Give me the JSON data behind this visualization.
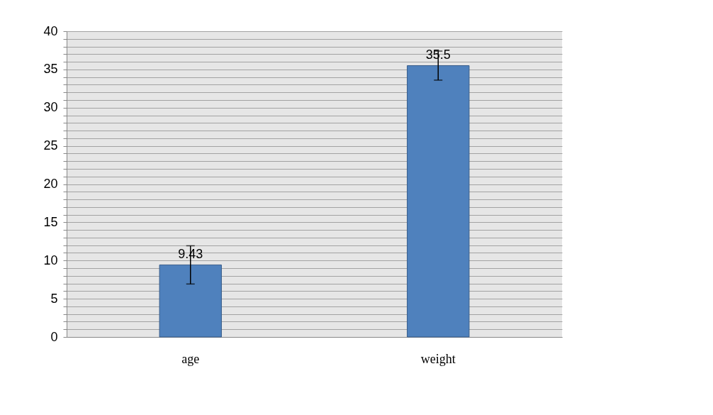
{
  "chart_data": {
    "type": "bar",
    "categories": [
      "age",
      "weight"
    ],
    "values": [
      9.43,
      35.5
    ],
    "errors": [
      2.5,
      1.9
    ],
    "color": "#4f81bd",
    "data_labels": true,
    "ylim": [
      0,
      40
    ],
    "yticks": [
      0,
      {
        "value": 1,
        "label": null
      },
      {
        "value": 2,
        "label": null
      },
      {
        "value": 3,
        "label": null
      },
      {
        "value": 4,
        "label": null
      },
      5,
      {
        "value": 6,
        "label": null
      },
      {
        "value": 7,
        "label": null
      },
      {
        "value": 8,
        "label": null
      },
      {
        "value": 9,
        "label": null
      },
      10,
      {
        "value": 11,
        "label": null
      },
      {
        "value": 12,
        "label": null
      },
      {
        "value": 13,
        "label": null
      },
      {
        "value": 14,
        "label": null
      },
      15,
      {
        "value": 16,
        "label": null
      },
      {
        "value": 17,
        "label": null
      },
      {
        "value": 18,
        "label": null
      },
      {
        "value": 19,
        "label": null
      },
      20,
      {
        "value": 21,
        "label": null
      },
      {
        "value": 22,
        "label": null
      },
      {
        "value": 23,
        "label": null
      },
      {
        "value": 24,
        "label": null
      },
      25,
      {
        "value": 26,
        "label": null
      },
      {
        "value": 27,
        "label": null
      },
      {
        "value": 28,
        "label": null
      },
      {
        "value": 29,
        "label": null
      },
      30,
      {
        "value": 31,
        "label": null
      },
      {
        "value": 32,
        "label": null
      },
      {
        "value": 33,
        "label": null
      },
      {
        "value": 34,
        "label": null
      },
      35,
      {
        "value": 36,
        "label": null
      },
      {
        "value": 37,
        "label": null
      },
      {
        "value": 38,
        "label": null
      },
      {
        "value": 39,
        "label": null
      },
      40
    ],
    "grid": "y"
  }
}
